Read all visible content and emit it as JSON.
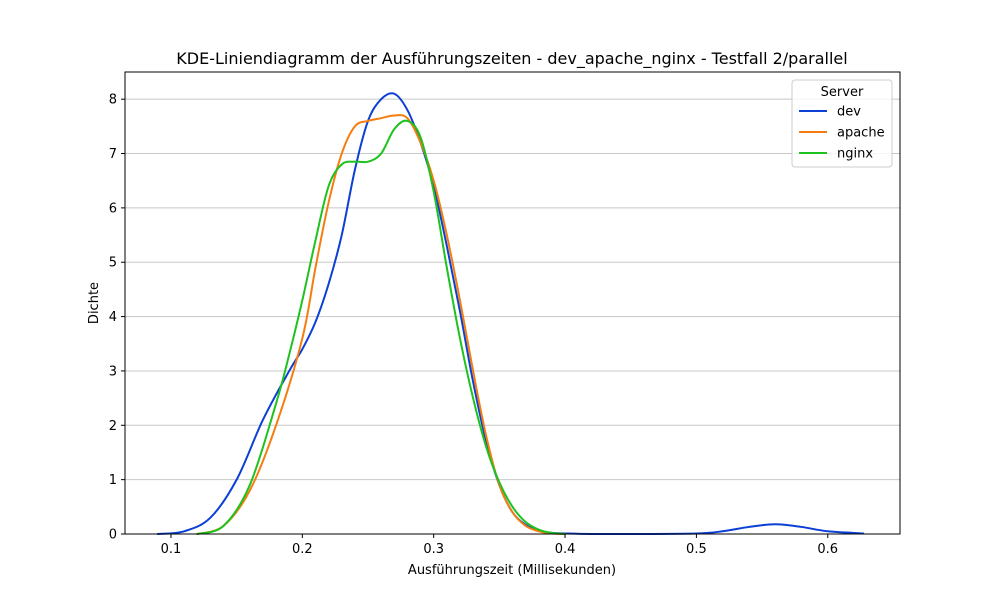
{
  "chart_data": {
    "type": "line",
    "title": "KDE-Liniendiagramm der Ausführungszeiten - dev_apache_nginx - Testfall 2/parallel",
    "xlabel": "Ausführungszeit (Millisekunden)",
    "ylabel": "Dichte",
    "xlim": [
      0.065,
      0.655
    ],
    "ylim": [
      0,
      8.5
    ],
    "xticks": [
      0.1,
      0.2,
      0.3,
      0.4,
      0.5,
      0.6
    ],
    "xtick_labels": [
      "0.1",
      "0.2",
      "0.3",
      "0.4",
      "0.5",
      "0.6"
    ],
    "yticks": [
      0,
      1,
      2,
      3,
      4,
      5,
      6,
      7,
      8
    ],
    "ytick_labels": [
      "0",
      "1",
      "2",
      "3",
      "4",
      "5",
      "6",
      "7",
      "8"
    ],
    "grid": "horizontal",
    "legend": {
      "title": "Server",
      "position": "top-right"
    },
    "series": [
      {
        "name": "dev",
        "color": "#0b3fd6",
        "x": [
          0.09,
          0.11,
          0.13,
          0.15,
          0.17,
          0.19,
          0.2,
          0.21,
          0.22,
          0.23,
          0.24,
          0.25,
          0.26,
          0.27,
          0.28,
          0.29,
          0.3,
          0.31,
          0.32,
          0.33,
          0.34,
          0.35,
          0.36,
          0.37,
          0.38,
          0.39,
          0.4,
          0.42,
          0.45,
          0.5,
          0.52,
          0.54,
          0.56,
          0.58,
          0.6,
          0.627
        ],
        "y": [
          0.0,
          0.05,
          0.3,
          1.0,
          2.1,
          3.0,
          3.4,
          3.9,
          4.6,
          5.5,
          6.7,
          7.6,
          8.0,
          8.1,
          7.8,
          7.2,
          6.4,
          5.3,
          4.1,
          2.8,
          1.7,
          0.9,
          0.4,
          0.17,
          0.06,
          0.02,
          0.01,
          0.0,
          0.0,
          0.01,
          0.05,
          0.13,
          0.18,
          0.13,
          0.05,
          0.01
        ]
      },
      {
        "name": "apache",
        "color": "#f57d0f",
        "x": [
          0.12,
          0.14,
          0.16,
          0.18,
          0.2,
          0.21,
          0.22,
          0.23,
          0.24,
          0.25,
          0.26,
          0.27,
          0.28,
          0.29,
          0.3,
          0.31,
          0.32,
          0.33,
          0.34,
          0.35,
          0.36,
          0.37,
          0.38,
          0.39,
          0.4
        ],
        "y": [
          0.0,
          0.15,
          0.8,
          2.0,
          3.6,
          4.9,
          6.1,
          7.0,
          7.5,
          7.6,
          7.65,
          7.7,
          7.65,
          7.2,
          6.5,
          5.5,
          4.3,
          3.0,
          1.8,
          0.9,
          0.4,
          0.15,
          0.05,
          0.01,
          0.0
        ]
      },
      {
        "name": "nginx",
        "color": "#1ec21e",
        "x": [
          0.12,
          0.14,
          0.16,
          0.18,
          0.19,
          0.2,
          0.21,
          0.22,
          0.23,
          0.24,
          0.25,
          0.26,
          0.27,
          0.28,
          0.29,
          0.3,
          0.31,
          0.32,
          0.33,
          0.34,
          0.35,
          0.36,
          0.37,
          0.38,
          0.39,
          0.4
        ],
        "y": [
          0.0,
          0.15,
          0.9,
          2.4,
          3.3,
          4.3,
          5.4,
          6.4,
          6.8,
          6.85,
          6.85,
          7.0,
          7.45,
          7.6,
          7.3,
          6.3,
          4.9,
          3.6,
          2.5,
          1.6,
          0.95,
          0.5,
          0.22,
          0.08,
          0.02,
          0.0
        ]
      }
    ]
  }
}
